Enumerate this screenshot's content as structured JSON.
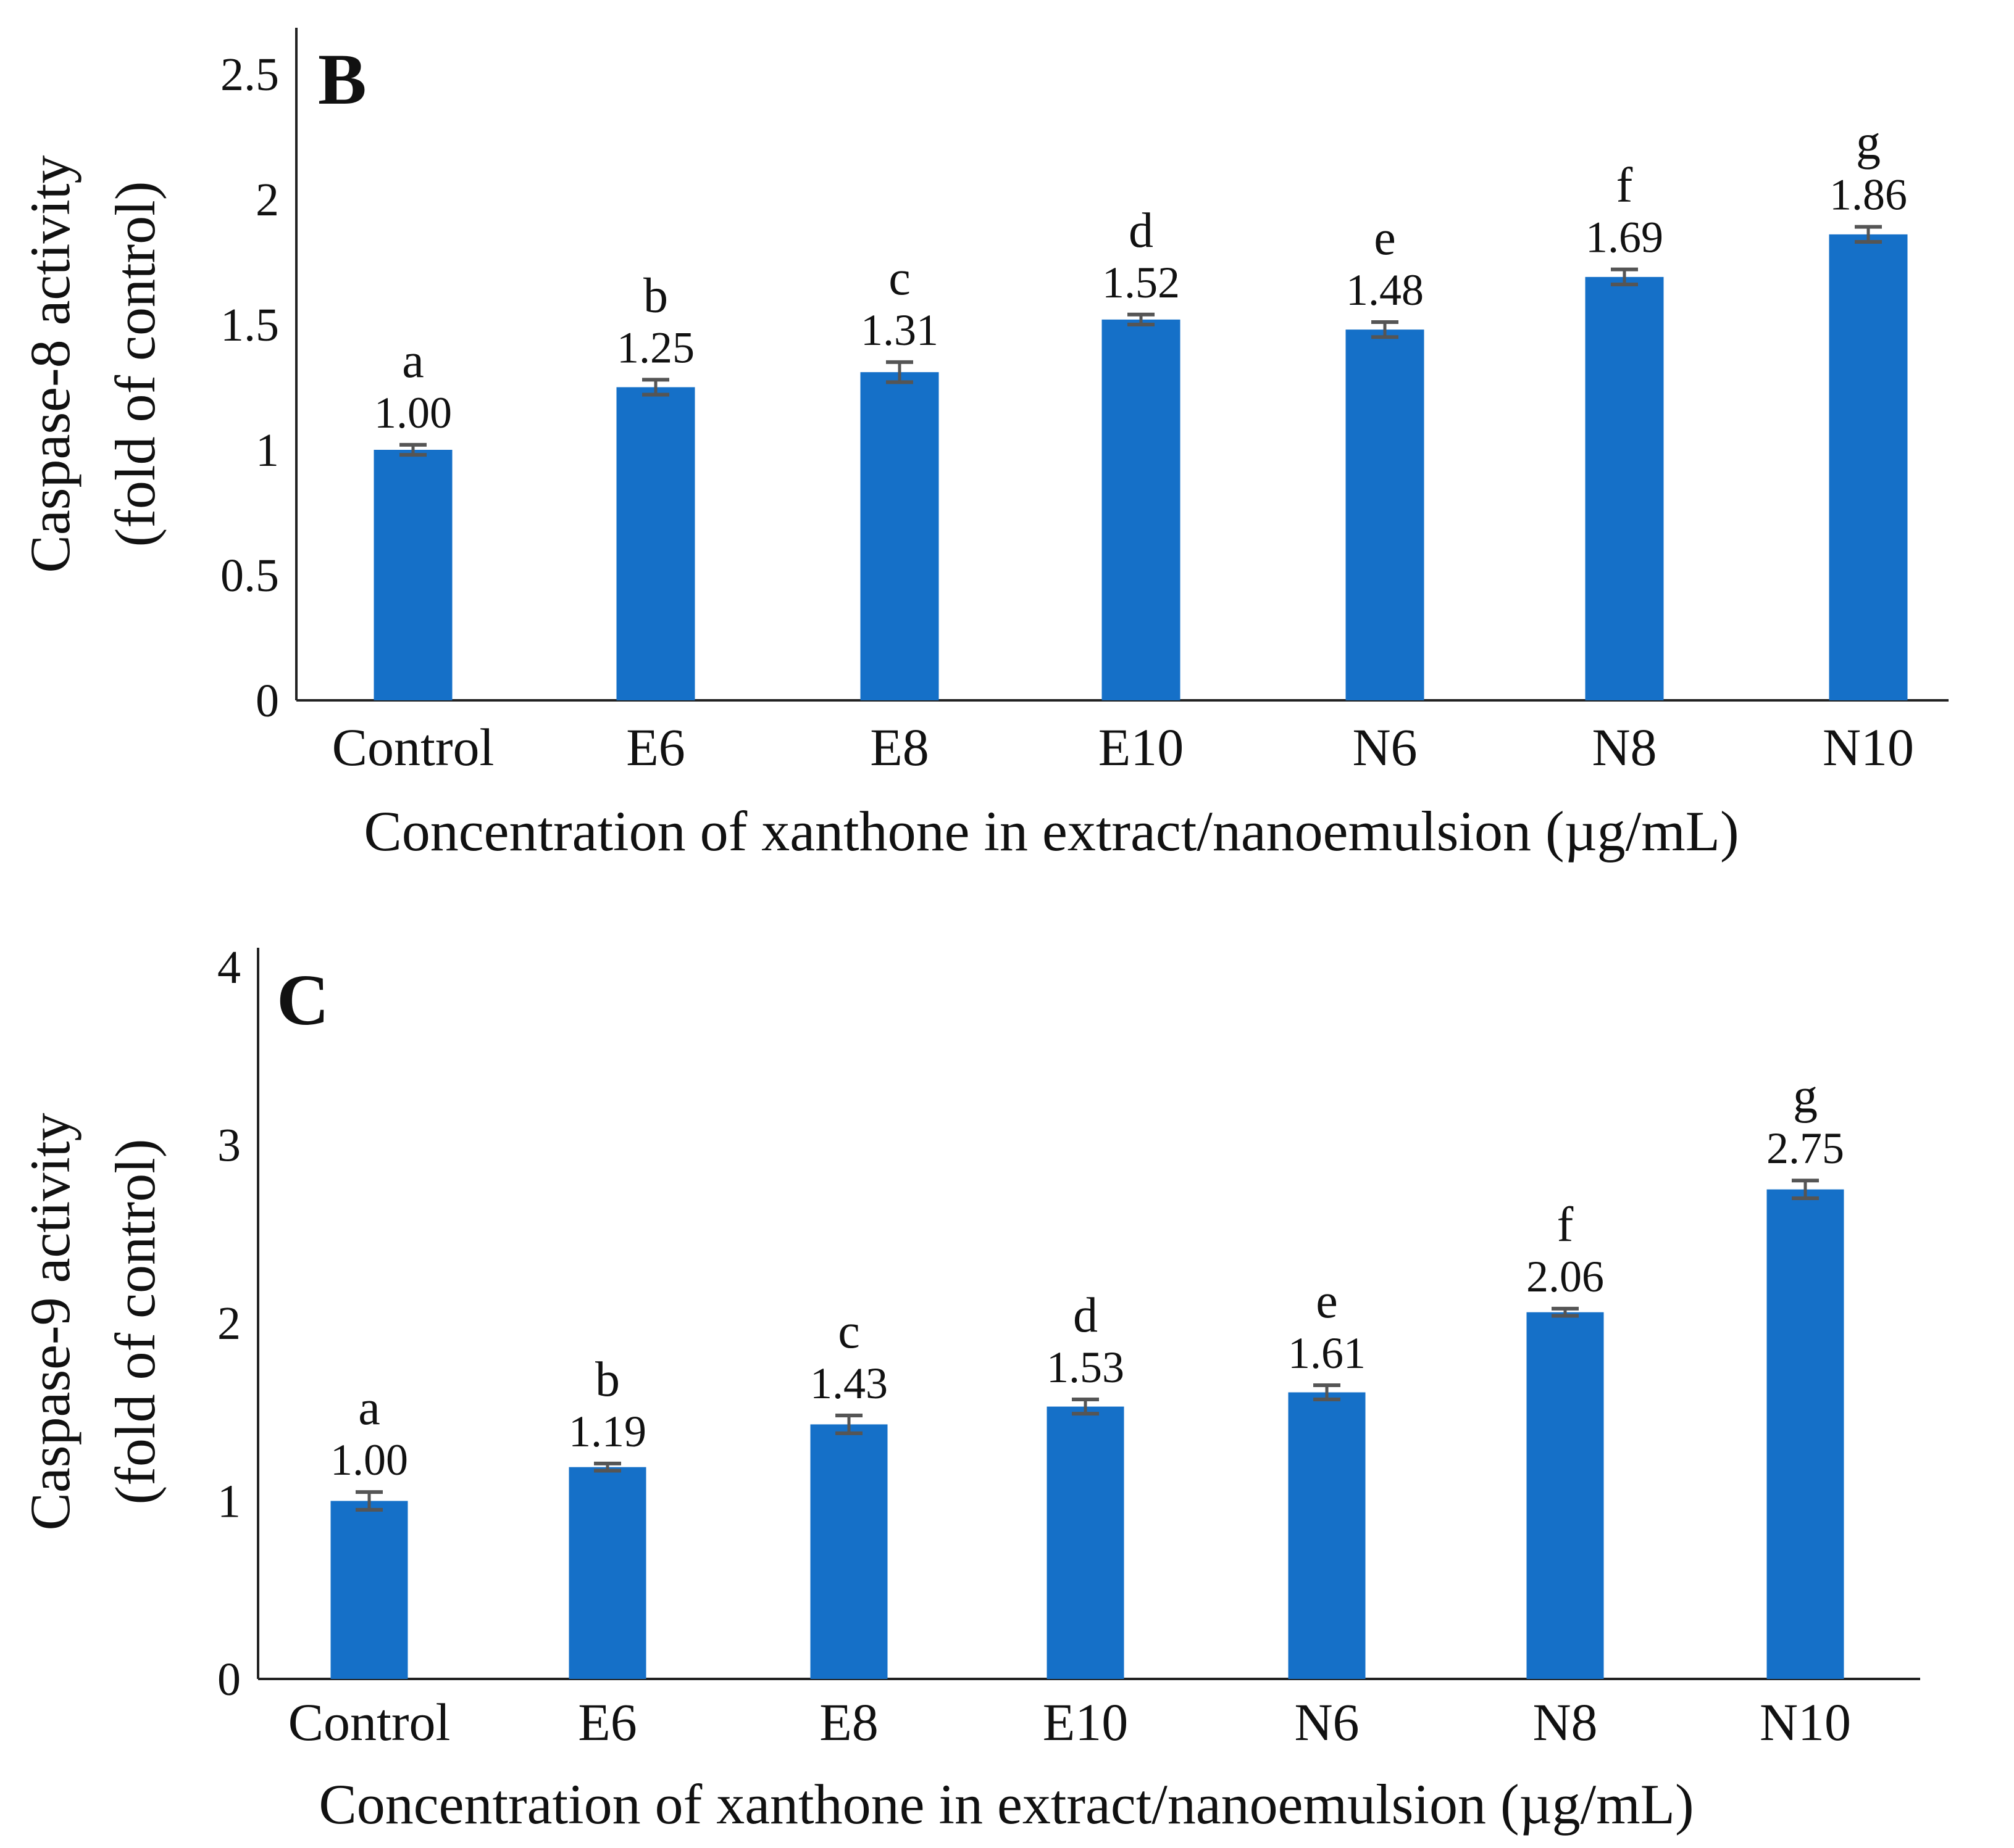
{
  "chart_data": [
    {
      "type": "bar",
      "panel_label": "B",
      "ylabel_lines": [
        "Caspase-8 activity",
        "(fold of control)"
      ],
      "xlabel": "Concentration of xanthone in extract/nanoemulsion (µg/mL)",
      "categories": [
        "Control",
        "E6",
        "E8",
        "E10",
        "N6",
        "N8",
        "N10"
      ],
      "values": [
        1.0,
        1.25,
        1.31,
        1.52,
        1.48,
        1.69,
        1.86
      ],
      "value_labels": [
        "1.00",
        "1.25",
        "1.31",
        "1.52",
        "1.48",
        "1.69",
        "1.86"
      ],
      "errors": [
        0.02,
        0.03,
        0.04,
        0.02,
        0.03,
        0.03,
        0.03
      ],
      "significance": [
        "a",
        "b",
        "c",
        "d",
        "e",
        "f",
        "g"
      ],
      "yticks": [
        0,
        0.5,
        1,
        1.5,
        2,
        2.5
      ],
      "ytick_labels": [
        "0",
        "0.5",
        "1",
        "1.5",
        "2",
        "2.5"
      ],
      "ylim": [
        0,
        2.5
      ],
      "grid": false,
      "bar_color": "#1570c8",
      "error_color": "#555555"
    },
    {
      "type": "bar",
      "panel_label": "C",
      "ylabel_lines": [
        "Caspase-9 activity",
        "(fold of control)"
      ],
      "xlabel": "Concentration of xanthone in extract/nanoemulsion (µg/mL)",
      "categories": [
        "Control",
        "E6",
        "E8",
        "E10",
        "N6",
        "N8",
        "N10"
      ],
      "values": [
        1.0,
        1.19,
        1.43,
        1.53,
        1.61,
        2.06,
        2.75
      ],
      "value_labels": [
        "1.00",
        "1.19",
        "1.43",
        "1.53",
        "1.61",
        "2.06",
        "2.75"
      ],
      "errors": [
        0.05,
        0.02,
        0.05,
        0.04,
        0.04,
        0.02,
        0.05
      ],
      "significance": [
        "a",
        "b",
        "c",
        "d",
        "e",
        "f",
        "g"
      ],
      "yticks": [
        0,
        1,
        2,
        3,
        4
      ],
      "ytick_labels": [
        "0",
        "1",
        "2",
        "3",
        "4"
      ],
      "ylim": [
        0,
        4
      ],
      "grid": false,
      "bar_color": "#1570c8",
      "error_color": "#555555"
    }
  ]
}
